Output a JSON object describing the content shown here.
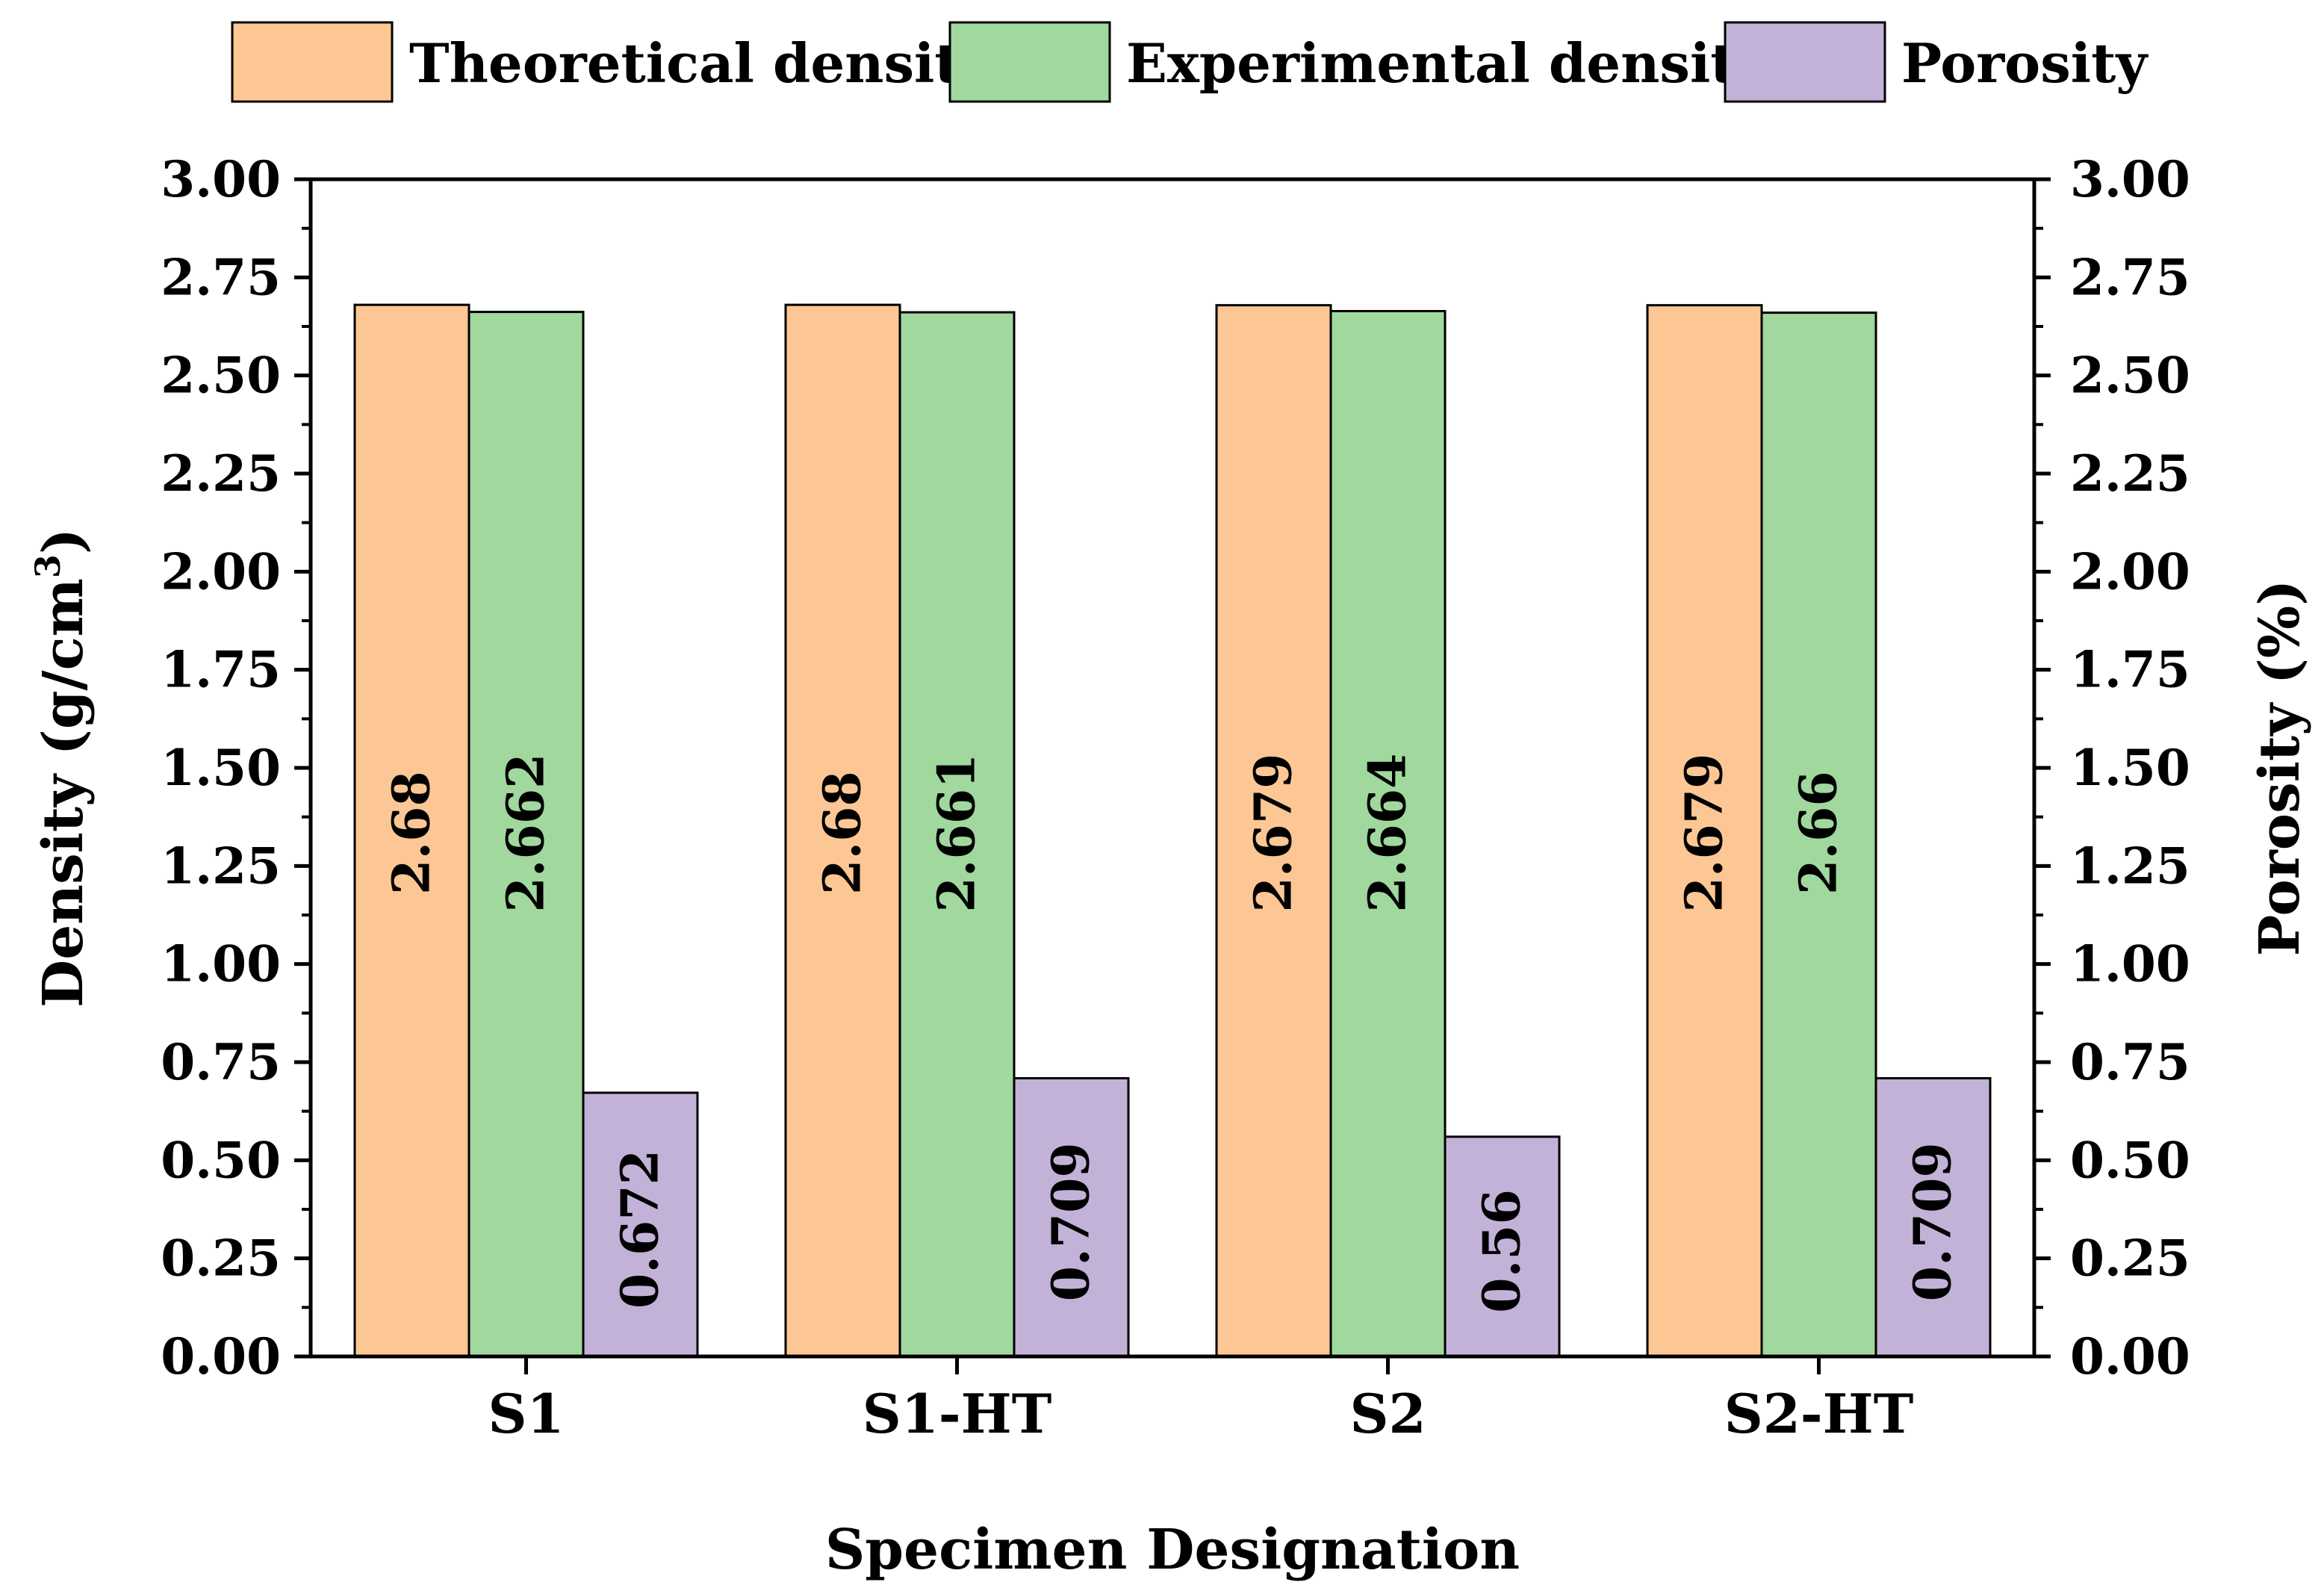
{
  "chart_data": {
    "type": "bar",
    "title": "",
    "categories": [
      "S1",
      "S1-HT",
      "S2",
      "S2-HT"
    ],
    "series": [
      {
        "name": "Theoretical density",
        "axis": "left",
        "color": "#FCC794",
        "values": [
          2.68,
          2.68,
          2.679,
          2.679
        ],
        "labels": [
          "2.68",
          "2.68",
          "2.679",
          "2.679"
        ]
      },
      {
        "name": "Experimental density",
        "axis": "left",
        "color": "#A0D89E",
        "values": [
          2.662,
          2.661,
          2.664,
          2.66
        ],
        "labels": [
          "2.662",
          "2.661",
          "2.664",
          "2.66"
        ]
      },
      {
        "name": "Porosity",
        "axis": "right",
        "color": "#C3B2D8",
        "values": [
          0.672,
          0.709,
          0.56,
          0.709
        ],
        "labels": [
          "0.672",
          "0.709",
          "0.56",
          "0.709"
        ]
      }
    ],
    "xlabel": "Specimen Designation",
    "ylabel": {
      "main": "Density (g/cm",
      "sup": "3",
      "end": ")"
    },
    "ylabel_right": "Porosity (%)",
    "ylim": [
      0,
      3
    ],
    "ylim_right": [
      0,
      3
    ],
    "yticks": [
      "0.00",
      "0.25",
      "0.50",
      "0.75",
      "1.00",
      "1.25",
      "1.50",
      "1.75",
      "2.00",
      "2.25",
      "2.50",
      "2.75",
      "3.00"
    ],
    "yticks_right": [
      "0.00",
      "0.25",
      "0.50",
      "0.75",
      "1.00",
      "1.25",
      "1.50",
      "1.75",
      "2.00",
      "2.25",
      "2.50",
      "2.75",
      "3.00"
    ],
    "legend_position": "top",
    "grid": false
  }
}
